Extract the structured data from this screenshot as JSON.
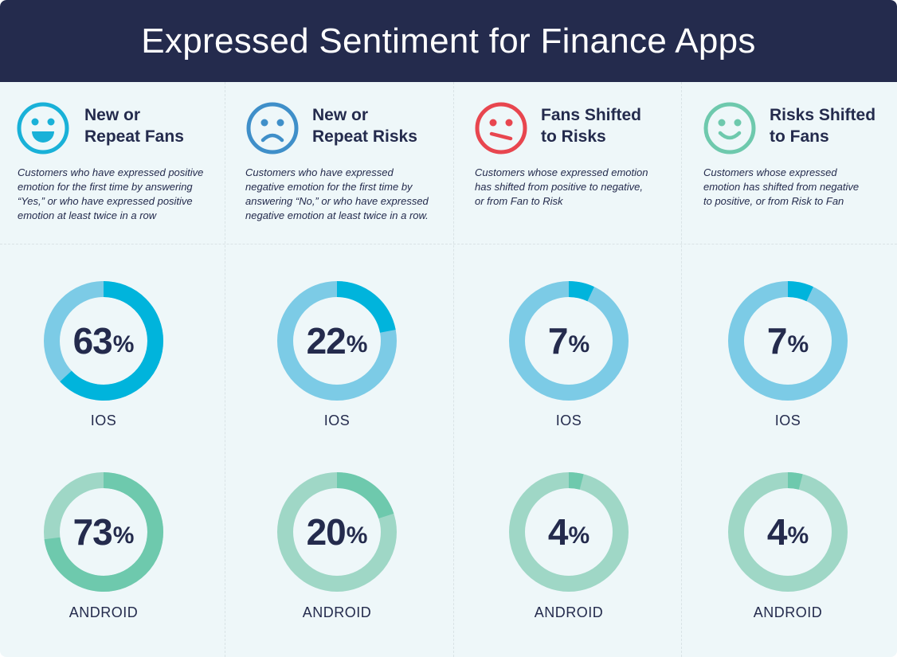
{
  "title": "Expressed Sentiment for Finance Apps",
  "colors": {
    "header_bg": "#242b4d",
    "ios_light": "#7ccbe6",
    "ios_dark": "#00b4dc",
    "android_light": "#9fd7c6",
    "android_dark": "#6ec9ad"
  },
  "categories": [
    {
      "icon": "happy-face-icon",
      "face_color": "#19b1d8",
      "title_lines": [
        "New or",
        "Repeat Fans"
      ],
      "desc_lines": [
        "Customers who have expressed positive",
        "emotion for the first time by answering",
        "“Yes,” or who have expressed positive",
        "emotion at least twice in a row"
      ],
      "ios_label": "IOS",
      "android_label": "ANDROID"
    },
    {
      "icon": "sad-face-icon",
      "face_color": "#3f8fc9",
      "title_lines": [
        "New or",
        "Repeat Risks"
      ],
      "desc_lines": [
        "Customers who have expressed",
        "negative emotion for the first time by",
        "answering “No,” or who have expressed",
        "negative emotion at least twice in a row."
      ],
      "ios_label": "IOS",
      "android_label": "ANDROID"
    },
    {
      "icon": "unhappy-face-icon",
      "face_color": "#e8464f",
      "title_lines": [
        "Fans Shifted",
        "to Risks"
      ],
      "desc_lines": [
        "Customers whose expressed emotion",
        "has shifted from positive to negative,",
        "or from Fan to Risk"
      ],
      "ios_label": "IOS",
      "android_label": "ANDROID"
    },
    {
      "icon": "smile-face-icon",
      "face_color": "#6ec9ad",
      "title_lines": [
        "Risks Shifted",
        "to Fans"
      ],
      "desc_lines": [
        "Customers whose expressed",
        "emotion has shifted from negative",
        "to positive, or from Risk to Fan"
      ],
      "ios_label": "IOS",
      "android_label": "ANDROID"
    }
  ],
  "chart_data": {
    "type": "donut",
    "categories": [
      "New or Repeat Fans",
      "New or Repeat Risks",
      "Fans Shifted to Risks",
      "Risks Shifted to Fans"
    ],
    "series": [
      {
        "name": "IOS",
        "values": [
          63,
          22,
          7,
          7
        ]
      },
      {
        "name": "ANDROID",
        "values": [
          73,
          20,
          4,
          4
        ]
      }
    ],
    "unit": "%",
    "percent_symbol": "%"
  }
}
